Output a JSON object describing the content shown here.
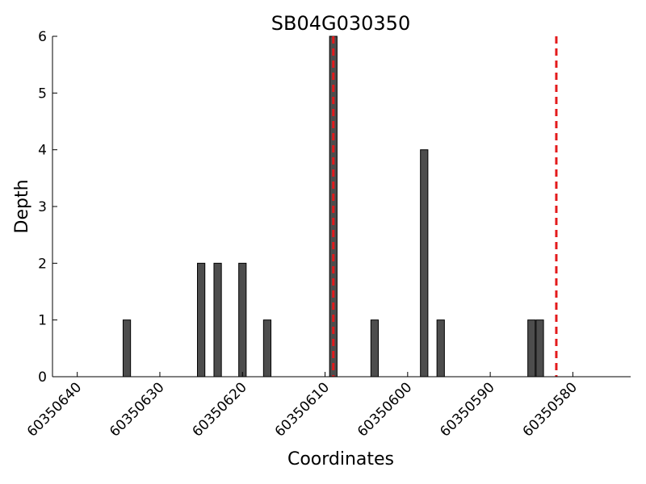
{
  "chart_data": {
    "type": "bar",
    "title": "SB04G030350",
    "xlabel": "Coordinates",
    "ylabel": "Depth",
    "x_reversed": true,
    "xlim": [
      60350643,
      60350573
    ],
    "ylim": [
      0,
      6
    ],
    "xticks": [
      60350640,
      60350630,
      60350620,
      60350610,
      60350600,
      60350590,
      60350580
    ],
    "xtick_labels": [
      "60350640",
      "60350630",
      "60350620",
      "60350610",
      "60350600",
      "60350590",
      "60350580"
    ],
    "yticks": [
      0,
      1,
      2,
      3,
      4,
      5,
      6
    ],
    "ytick_labels": [
      "0",
      "1",
      "2",
      "3",
      "4",
      "5",
      "6"
    ],
    "grid": false,
    "bar_color": "#4d4d4d",
    "series": [
      {
        "x": [
          60350634,
          60350625,
          60350623,
          60350620,
          60350617,
          60350609,
          60350604,
          60350598,
          60350596,
          60350585,
          60350584
        ],
        "values": [
          1,
          2,
          2,
          2,
          1,
          6,
          1,
          4,
          1,
          1,
          1
        ]
      }
    ],
    "vlines": {
      "x": [
        60350609,
        60350582
      ],
      "color": "#e31a1c",
      "style": "dashed"
    }
  }
}
